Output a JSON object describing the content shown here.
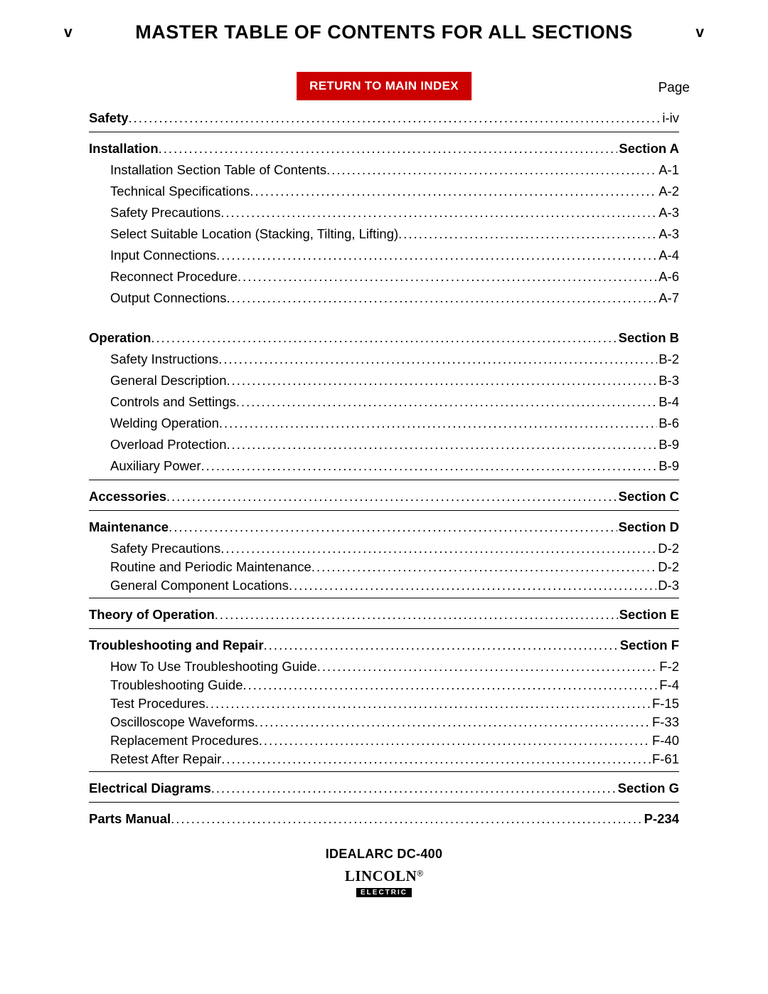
{
  "page_number": "v",
  "title": "MASTER TABLE OF CONTENTS FOR ALL SECTIONS",
  "return_button": "RETURN TO MAIN INDEX",
  "page_label": "Page",
  "sections": {
    "safety": {
      "label": "Safety",
      "page": "i-iv"
    },
    "installation": {
      "label": "Installation",
      "page": "Section A",
      "items": [
        {
          "label": "Installation Section Table of Contents",
          "page": "A-1"
        },
        {
          "label": "Technical Specifications",
          "page": "A-2"
        },
        {
          "label": "Safety Precautions",
          "page": "A-3"
        },
        {
          "label": "Select Suitable Location (Stacking, Tilting, Lifting)",
          "page": "A-3"
        },
        {
          "label": "Input Connections",
          "page": "A-4"
        },
        {
          "label": "Reconnect Procedure",
          "page": "A-6"
        },
        {
          "label": "Output Connections",
          "page": "A-7"
        }
      ]
    },
    "operation": {
      "label": "Operation",
      "page": "Section B",
      "items": [
        {
          "label": "Safety Instructions",
          "page": "B-2"
        },
        {
          "label": "General Description",
          "page": "B-3"
        },
        {
          "label": "Controls and Settings",
          "page": "B-4"
        },
        {
          "label": "Welding Operation",
          "page": "B-6"
        },
        {
          "label": "Overload Protection",
          "page": "B-9"
        },
        {
          "label": "Auxiliary Power",
          "page": "B-9"
        }
      ]
    },
    "accessories": {
      "label": "Accessories",
      "page": "Section C"
    },
    "maintenance": {
      "label": "Maintenance",
      "page": "Section D",
      "items": [
        {
          "label": "Safety Precautions",
          "page": "D-2"
        },
        {
          "label": "Routine and Periodic Maintenance",
          "page": "D-2"
        },
        {
          "label": "General Component Locations",
          "page": "D-3"
        }
      ]
    },
    "theory": {
      "label": "Theory of Operation",
      "page": "Section E"
    },
    "troubleshooting": {
      "label": "Troubleshooting and Repair",
      "page": "Section F",
      "items": [
        {
          "label": "How To Use Troubleshooting Guide",
          "page": "F-2"
        },
        {
          "label": "Troubleshooting Guide",
          "page": "F-4"
        },
        {
          "label": "Test Procedures",
          "page": "F-15"
        },
        {
          "label": "Oscilloscope Waveforms",
          "page": "F-33"
        },
        {
          "label": "Replacement Procedures",
          "page": "F-40"
        },
        {
          "label": "Retest After Repair",
          "page": "F-61"
        }
      ]
    },
    "electrical": {
      "label": "Electrical Diagrams",
      "page": "Section G"
    },
    "parts": {
      "label": "Parts Manual",
      "page": "P-234"
    }
  },
  "footer": {
    "product": "IDEALARC DC-400",
    "logo_top": "LINCOLN",
    "logo_reg": "®",
    "logo_bottom": "ELECTRIC"
  },
  "colors": {
    "button_bg": "#cc0000",
    "button_fg": "#ffffff",
    "text": "#000000",
    "background": "#ffffff"
  }
}
